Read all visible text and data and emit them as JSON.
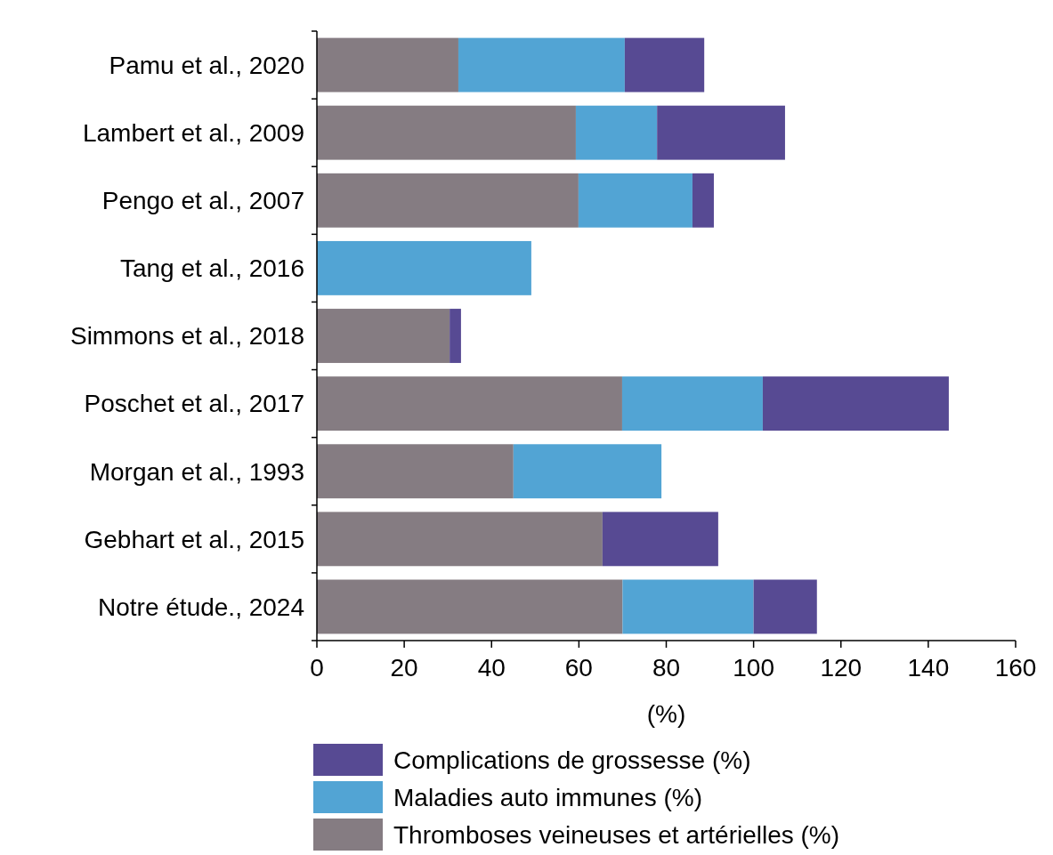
{
  "chart_data": {
    "type": "bar",
    "orientation": "horizontal",
    "stacked": true,
    "categories": [
      "Pamu et al., 2020",
      "Lambert et al., 2009",
      "Pengo et al., 2007",
      "Tang et al., 2016",
      "Simmons et al., 2018",
      "Poschet et al., 2017",
      "Morgan et al., 1993",
      "Gebhart et al., 2015",
      "Notre étude., 2024"
    ],
    "series": [
      {
        "name": "Thromboses veineuses et artérielles (%)",
        "color": "#857c82",
        "values": [
          32.4,
          59.3,
          59.9,
          0,
          30.4,
          69.9,
          45,
          65.4,
          70
        ]
      },
      {
        "name": "Maladies auto immunes (%)",
        "color": "#52a4d4",
        "values": [
          38.1,
          18.6,
          26.1,
          49.1,
          0,
          32.2,
          33.9,
          0,
          30
        ]
      },
      {
        "name": "Complications de grossesse (%)",
        "color": "#574a93",
        "values": [
          18.2,
          29.3,
          4.9,
          0,
          2.6,
          42.6,
          0,
          26.5,
          14.5
        ]
      }
    ],
    "xlim": [
      0,
      160
    ],
    "xticks": [
      0,
      20,
      40,
      60,
      80,
      100,
      120,
      140,
      160
    ],
    "xlabel": "(%)",
    "grid": false,
    "legend": "bottom"
  }
}
